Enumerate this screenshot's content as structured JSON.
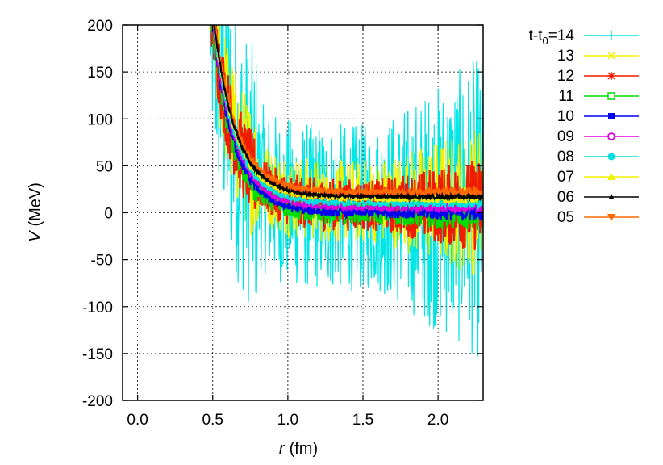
{
  "chart_data": {
    "type": "scatter",
    "title": "",
    "xlabel_var": "r",
    "xlabel_unit": "(fm)",
    "ylabel_var": "V",
    "ylabel_unit": "(MeV)",
    "xlim": [
      -0.1,
      2.3
    ],
    "ylim": [
      -200,
      200
    ],
    "grid": true,
    "legend_position": "outside-right",
    "x_ticks": [
      {
        "value": 0.0,
        "label": "0.0"
      },
      {
        "value": 0.5,
        "label": "0.5"
      },
      {
        "value": 1.0,
        "label": "1.0"
      },
      {
        "value": 1.5,
        "label": "1.5"
      },
      {
        "value": 2.0,
        "label": "2.0"
      }
    ],
    "y_ticks": [
      {
        "value": 200,
        "label": "200"
      },
      {
        "value": 150,
        "label": "150"
      },
      {
        "value": 100,
        "label": "100"
      },
      {
        "value": 50,
        "label": "50"
      },
      {
        "value": 0,
        "label": "0"
      },
      {
        "value": -50,
        "label": "-50"
      },
      {
        "value": -100,
        "label": "-100"
      },
      {
        "value": -150,
        "label": "-150"
      },
      {
        "value": -200,
        "label": "-200"
      }
    ],
    "legend_prefix": "t-t",
    "legend_prefix_sub": "0",
    "legend_prefix_suffix": "=",
    "series": [
      {
        "name": "14",
        "color": "#00e5e5",
        "marker": "vbar",
        "asymptote": 5,
        "noise": 90,
        "order": 0
      },
      {
        "name": "13",
        "color": "#f2f200",
        "marker": "x",
        "asymptote": 12,
        "noise": 45,
        "order": 1
      },
      {
        "name": "12",
        "color": "#ee1c00",
        "marker": "star",
        "asymptote": 8,
        "noise": 28,
        "order": 2
      },
      {
        "name": "11",
        "color": "#00dd00",
        "marker": "square-open",
        "asymptote": 0,
        "noise": 12,
        "order": 3
      },
      {
        "name": "10",
        "color": "#0000ee",
        "marker": "square",
        "asymptote": 0,
        "noise": 5,
        "order": 4
      },
      {
        "name": "09",
        "color": "#dd00dd",
        "marker": "circle-open",
        "asymptote": 5,
        "noise": 3,
        "order": 5
      },
      {
        "name": "08",
        "color": "#00e0e0",
        "marker": "circle",
        "asymptote": 10,
        "noise": 3,
        "order": 6
      },
      {
        "name": "07",
        "color": "#f2f200",
        "marker": "triangle",
        "asymptote": 15,
        "noise": 3,
        "order": 7
      },
      {
        "name": "06",
        "color": "#000000",
        "marker": "triangle-small",
        "asymptote": 17,
        "noise": 1.5,
        "order": 9
      },
      {
        "name": "05",
        "color": "#ff6a00",
        "marker": "triangle-down",
        "asymptote": 22,
        "noise": 3,
        "order": 8
      }
    ]
  }
}
